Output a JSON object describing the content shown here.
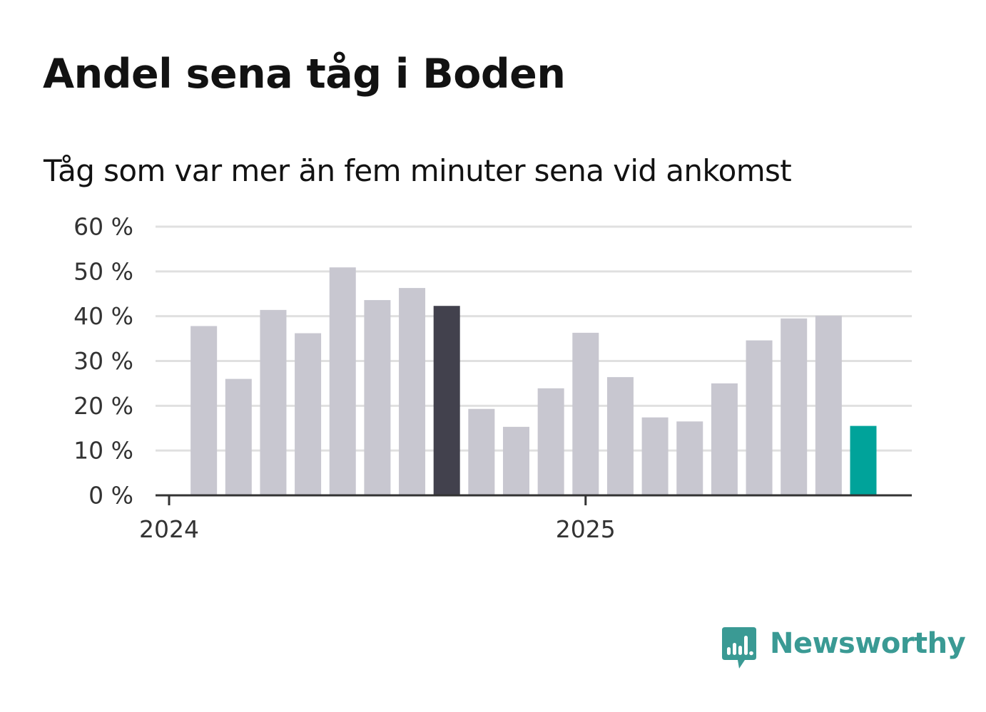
{
  "title": "Andel sena tåg i Boden",
  "subtitle": "Tåg som var mer än fem minuter sena vid ankomst",
  "brand": {
    "name": "Newsworthy",
    "icon": "newsworthy-chart-bubble-icon",
    "color": "#3a9a94"
  },
  "colors": {
    "bar_default": "#c8c7d0",
    "bar_highlight_dark": "#42414d",
    "bar_highlight_current": "#00a39a",
    "gridline": "#e0e0e0",
    "axis": "#333333",
    "text": "#121212",
    "tick_text": "#333333"
  },
  "chart_data": {
    "type": "bar",
    "title": "Andel sena tåg i Boden",
    "subtitle": "Tåg som var mer än fem minuter sena vid ankomst",
    "xlabel": "",
    "ylabel": "",
    "ylim": [
      0,
      60
    ],
    "yticks": [
      0,
      10,
      20,
      30,
      40,
      50,
      60
    ],
    "ytick_labels": [
      "0 %",
      "10 %",
      "20 %",
      "30 %",
      "40 %",
      "50 %",
      "60 %"
    ],
    "xtick_labels": [
      {
        "label": "2024",
        "month": "2024-01"
      },
      {
        "label": "2025",
        "month": "2025-01"
      }
    ],
    "grid": true,
    "categories": [
      "2024-02",
      "2024-03",
      "2024-04",
      "2024-05",
      "2024-06",
      "2024-07",
      "2024-08",
      "2024-09",
      "2024-10",
      "2024-11",
      "2024-12",
      "2025-01",
      "2025-02",
      "2025-03",
      "2025-04",
      "2025-05",
      "2025-06",
      "2025-07",
      "2025-08",
      "2025-09"
    ],
    "values": [
      37.8,
      26.0,
      41.4,
      36.2,
      50.9,
      43.6,
      46.3,
      42.3,
      19.3,
      15.3,
      23.9,
      36.3,
      26.4,
      17.4,
      16.5,
      25.0,
      34.6,
      39.5,
      40.1,
      15.5
    ],
    "highlights": {
      "2024-09": "bar_highlight_dark",
      "2025-09": "bar_highlight_current"
    }
  }
}
